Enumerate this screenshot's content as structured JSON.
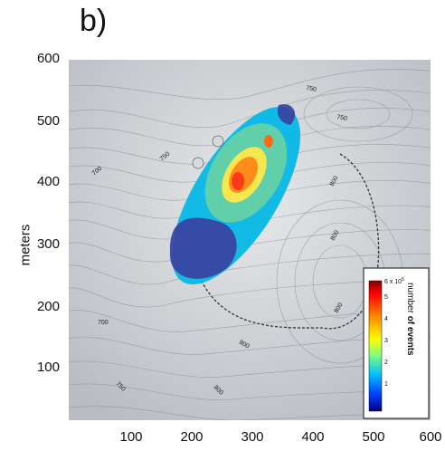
{
  "panel": {
    "label": "b)"
  },
  "axes": {
    "y_title": "meters",
    "y_ticks": [
      "600",
      "500",
      "400",
      "300",
      "200",
      "100"
    ],
    "x_ticks": [
      "100",
      "200",
      "300",
      "400",
      "500",
      "600"
    ]
  },
  "contours": {
    "labels": [
      "750",
      "750",
      "700",
      "750",
      "800",
      "800",
      "800",
      "700",
      "800",
      "750",
      "800"
    ]
  },
  "colorbar": {
    "title_plain": "number ",
    "title_bold": "of events",
    "max_label": "6 x 10",
    "max_exp": "5",
    "ticks": [
      "5",
      "4",
      "3",
      "2",
      "1"
    ],
    "colors": [
      "#7f0000",
      "#ff0000",
      "#ff8c00",
      "#ffff00",
      "#7fff7f",
      "#00bfff",
      "#0040ff",
      "#00007f"
    ]
  },
  "colors": {
    "terrain": "#cfd2d6",
    "contour_line": "#8e9399",
    "boundary": "#333333"
  }
}
